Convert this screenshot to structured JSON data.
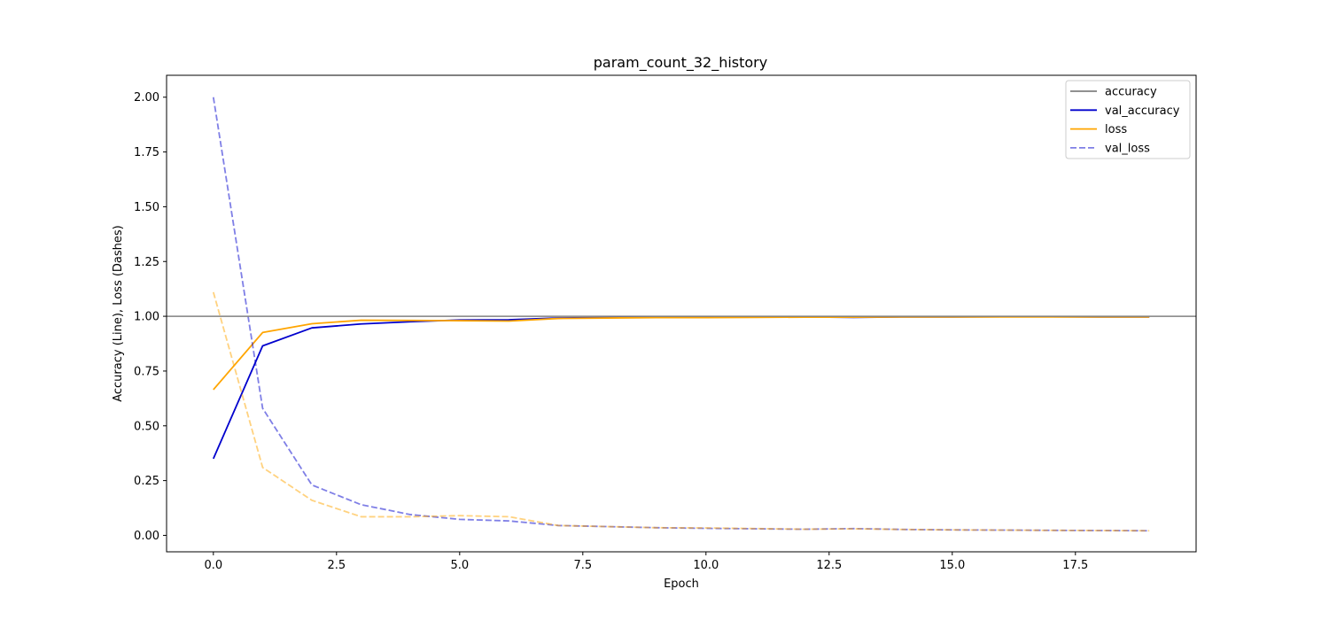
{
  "chart_data": {
    "type": "line",
    "title": "param_count_32_history",
    "xlabel": "Epoch",
    "ylabel": "Accuracy (Line), Loss (Dashes)",
    "xlim": [
      -0.95,
      19.95
    ],
    "ylim": [
      -0.075,
      2.1
    ],
    "xticks": [
      0,
      2.5,
      5,
      7.5,
      10,
      12.5,
      15,
      17.5
    ],
    "xtick_labels": [
      "0.0",
      "2.5",
      "5.0",
      "7.5",
      "10.0",
      "12.5",
      "15.0",
      "17.5"
    ],
    "yticks": [
      0,
      0.25,
      0.5,
      0.75,
      1.0,
      1.25,
      1.5,
      1.75,
      2.0
    ],
    "ytick_labels": [
      "0.00",
      "0.25",
      "0.50",
      "0.75",
      "1.00",
      "1.25",
      "1.50",
      "1.75",
      "2.00"
    ],
    "grid": false,
    "legend_position": "top-right",
    "reference_line": {
      "y": 1.0,
      "color": "#808080"
    },
    "legend": [
      {
        "label": "accuracy",
        "color": "#808080",
        "style": "solid",
        "opacity": 1
      },
      {
        "label": "val_accuracy",
        "color": "#0000cd",
        "style": "solid",
        "opacity": 1
      },
      {
        "label": "loss",
        "color": "#ffa500",
        "style": "solid",
        "opacity": 1
      },
      {
        "label": "val_loss",
        "color": "#0000cd",
        "style": "dashed",
        "opacity": 0.5
      }
    ],
    "x": [
      0,
      1,
      2,
      3,
      4,
      5,
      6,
      7,
      8,
      9,
      10,
      11,
      12,
      13,
      14,
      15,
      16,
      17,
      18,
      19
    ],
    "series": [
      {
        "color": "#0000cd",
        "style": "solid",
        "opacity": 1,
        "values": [
          0.35,
          0.865,
          0.947,
          0.965,
          0.975,
          0.983,
          0.984,
          0.992,
          0.994,
          0.996,
          0.996,
          0.997,
          0.997,
          0.995,
          0.997,
          0.997,
          0.998,
          0.998,
          0.997,
          0.997
        ]
      },
      {
        "color": "#ffa500",
        "style": "solid",
        "opacity": 1,
        "values": [
          0.665,
          0.926,
          0.966,
          0.982,
          0.981,
          0.98,
          0.978,
          0.99,
          0.992,
          0.994,
          0.994,
          0.995,
          0.996,
          0.996,
          0.997,
          0.997,
          0.997,
          0.997,
          0.997,
          0.997
        ]
      },
      {
        "color": "#0000cd",
        "style": "dashed",
        "opacity": 0.5,
        "values": [
          2.0,
          0.58,
          0.23,
          0.14,
          0.095,
          0.073,
          0.066,
          0.045,
          0.04,
          0.035,
          0.032,
          0.03,
          0.028,
          0.031,
          0.027,
          0.025,
          0.024,
          0.023,
          0.022,
          0.021
        ]
      },
      {
        "color": "#ffa500",
        "style": "dashed",
        "opacity": 0.5,
        "values": [
          1.11,
          0.31,
          0.16,
          0.085,
          0.085,
          0.09,
          0.085,
          0.045,
          0.04,
          0.035,
          0.034,
          0.031,
          0.028,
          0.03,
          0.027,
          0.025,
          0.024,
          0.023,
          0.022,
          0.021
        ]
      }
    ]
  }
}
